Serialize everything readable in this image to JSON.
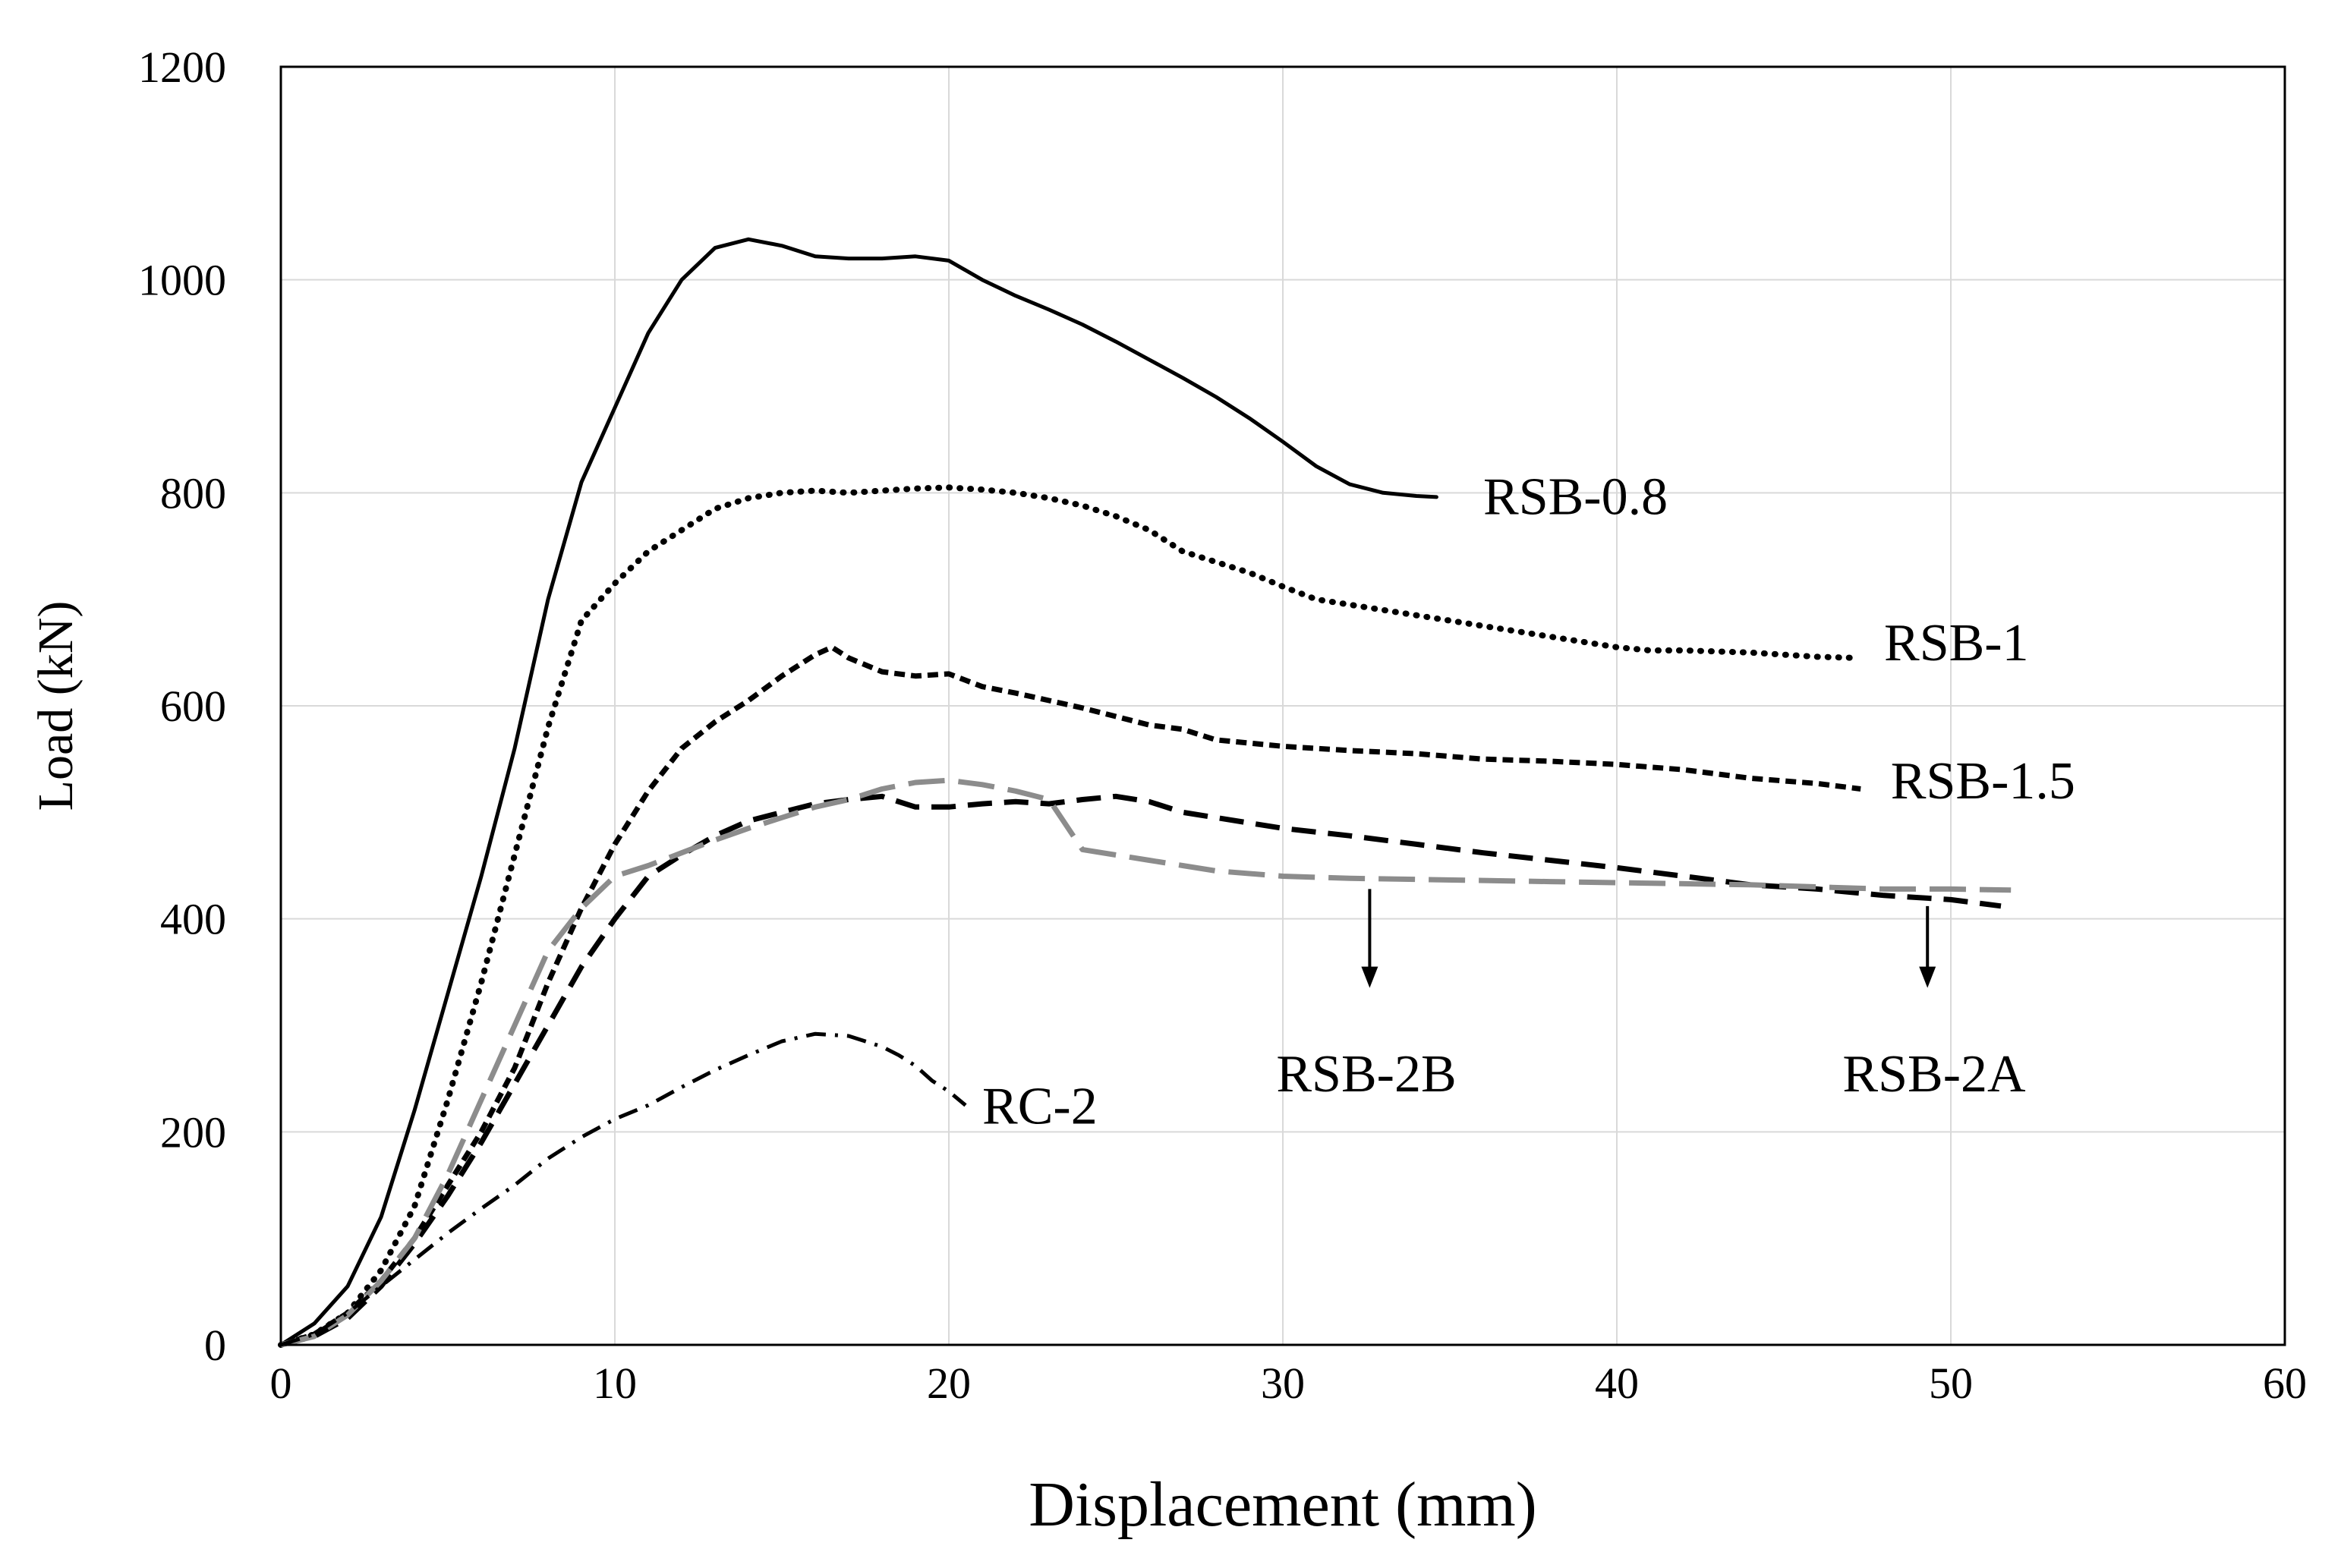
{
  "chart_data": {
    "type": "line",
    "title": "",
    "xlabel": "Displacement (mm)",
    "ylabel": "Load (kN)",
    "xlim": [
      0,
      60
    ],
    "ylim": [
      0,
      1200
    ],
    "xticks": [
      0,
      10,
      20,
      30,
      40,
      50,
      60
    ],
    "yticks": [
      0,
      200,
      400,
      600,
      800,
      1000,
      1200
    ],
    "grid": true,
    "series": [
      {
        "name": "RSB-0.8",
        "style": "solid",
        "color": "#000000",
        "points": [
          [
            0,
            0
          ],
          [
            1,
            20
          ],
          [
            2,
            55
          ],
          [
            3,
            120
          ],
          [
            4,
            220
          ],
          [
            5,
            330
          ],
          [
            6,
            440
          ],
          [
            7,
            560
          ],
          [
            8,
            700
          ],
          [
            9,
            810
          ],
          [
            10,
            880
          ],
          [
            11,
            950
          ],
          [
            12,
            1000
          ],
          [
            13,
            1030
          ],
          [
            14,
            1038
          ],
          [
            15,
            1032
          ],
          [
            16,
            1022
          ],
          [
            17,
            1020
          ],
          [
            18,
            1020
          ],
          [
            19,
            1022
          ],
          [
            20,
            1018
          ],
          [
            21,
            1000
          ],
          [
            22,
            985
          ],
          [
            23,
            972
          ],
          [
            24,
            958
          ],
          [
            25,
            942
          ],
          [
            26,
            925
          ],
          [
            27,
            908
          ],
          [
            28,
            890
          ],
          [
            29,
            870
          ],
          [
            30,
            848
          ],
          [
            31,
            825
          ],
          [
            32,
            808
          ],
          [
            33,
            800
          ],
          [
            34,
            797
          ],
          [
            34.6,
            796
          ]
        ]
      },
      {
        "name": "RSB-1",
        "style": "dotted",
        "color": "#000000",
        "points": [
          [
            0,
            0
          ],
          [
            1,
            10
          ],
          [
            2,
            30
          ],
          [
            3,
            70
          ],
          [
            4,
            130
          ],
          [
            5,
            230
          ],
          [
            6,
            340
          ],
          [
            7,
            460
          ],
          [
            8,
            580
          ],
          [
            9,
            680
          ],
          [
            10,
            715
          ],
          [
            11,
            745
          ],
          [
            12,
            765
          ],
          [
            13,
            785
          ],
          [
            14,
            795
          ],
          [
            15,
            800
          ],
          [
            16,
            802
          ],
          [
            17,
            800
          ],
          [
            18,
            802
          ],
          [
            19,
            804
          ],
          [
            20,
            805
          ],
          [
            21,
            803
          ],
          [
            22,
            800
          ],
          [
            23,
            795
          ],
          [
            24,
            788
          ],
          [
            25,
            778
          ],
          [
            26,
            765
          ],
          [
            27,
            745
          ],
          [
            28,
            735
          ],
          [
            29,
            725
          ],
          [
            30,
            712
          ],
          [
            31,
            700
          ],
          [
            32,
            695
          ],
          [
            33,
            690
          ],
          [
            34,
            685
          ],
          [
            35,
            680
          ],
          [
            36,
            675
          ],
          [
            37,
            670
          ],
          [
            38,
            665
          ],
          [
            39,
            660
          ],
          [
            40,
            655
          ],
          [
            41,
            652
          ],
          [
            42,
            652
          ],
          [
            43,
            651
          ],
          [
            44,
            650
          ],
          [
            45,
            648
          ],
          [
            46,
            646
          ],
          [
            47.2,
            645
          ]
        ]
      },
      {
        "name": "RSB-1.5",
        "style": "short-dash",
        "color": "#000000",
        "points": [
          [
            0,
            0
          ],
          [
            1,
            10
          ],
          [
            2,
            30
          ],
          [
            3,
            60
          ],
          [
            4,
            100
          ],
          [
            5,
            150
          ],
          [
            6,
            200
          ],
          [
            7,
            260
          ],
          [
            8,
            340
          ],
          [
            9,
            410
          ],
          [
            10,
            470
          ],
          [
            11,
            520
          ],
          [
            12,
            560
          ],
          [
            13,
            585
          ],
          [
            14,
            605
          ],
          [
            15,
            628
          ],
          [
            16,
            648
          ],
          [
            16.5,
            655
          ],
          [
            17,
            645
          ],
          [
            18,
            632
          ],
          [
            19,
            628
          ],
          [
            20,
            630
          ],
          [
            21,
            618
          ],
          [
            22,
            612
          ],
          [
            23,
            605
          ],
          [
            24,
            598
          ],
          [
            25,
            590
          ],
          [
            26,
            582
          ],
          [
            27,
            578
          ],
          [
            28,
            568
          ],
          [
            30,
            562
          ],
          [
            32,
            558
          ],
          [
            34,
            555
          ],
          [
            36,
            550
          ],
          [
            38,
            548
          ],
          [
            40,
            545
          ],
          [
            42,
            540
          ],
          [
            44,
            532
          ],
          [
            46,
            527
          ],
          [
            47.3,
            522
          ]
        ]
      },
      {
        "name": "RSB-2A",
        "style": "dash",
        "color": "#000000",
        "points": [
          [
            0,
            0
          ],
          [
            1,
            8
          ],
          [
            2,
            25
          ],
          [
            3,
            55
          ],
          [
            4,
            95
          ],
          [
            5,
            140
          ],
          [
            6,
            190
          ],
          [
            7,
            245
          ],
          [
            8,
            300
          ],
          [
            9,
            355
          ],
          [
            10,
            400
          ],
          [
            11,
            440
          ],
          [
            12,
            460
          ],
          [
            13,
            478
          ],
          [
            14,
            492
          ],
          [
            15,
            500
          ],
          [
            16,
            508
          ],
          [
            17,
            512
          ],
          [
            18,
            515
          ],
          [
            19,
            505
          ],
          [
            20,
            505
          ],
          [
            21,
            508
          ],
          [
            22,
            510
          ],
          [
            23,
            508
          ],
          [
            24,
            512
          ],
          [
            25,
            515
          ],
          [
            26,
            510
          ],
          [
            27,
            500
          ],
          [
            28,
            495
          ],
          [
            30,
            485
          ],
          [
            32,
            478
          ],
          [
            34,
            470
          ],
          [
            36,
            462
          ],
          [
            38,
            455
          ],
          [
            40,
            448
          ],
          [
            42,
            440
          ],
          [
            44,
            432
          ],
          [
            46,
            428
          ],
          [
            48,
            422
          ],
          [
            50,
            418
          ],
          [
            51.5,
            412
          ]
        ]
      },
      {
        "name": "RSB-2B",
        "style": "long-dash",
        "color": "#8c8c8c",
        "points": [
          [
            0,
            0
          ],
          [
            1,
            8
          ],
          [
            2,
            28
          ],
          [
            3,
            60
          ],
          [
            4,
            100
          ],
          [
            5,
            160
          ],
          [
            6,
            230
          ],
          [
            7,
            300
          ],
          [
            8,
            370
          ],
          [
            9,
            410
          ],
          [
            10,
            440
          ],
          [
            11,
            450
          ],
          [
            12,
            462
          ],
          [
            13,
            474
          ],
          [
            14,
            485
          ],
          [
            15,
            495
          ],
          [
            16,
            505
          ],
          [
            17,
            512
          ],
          [
            18,
            522
          ],
          [
            19,
            528
          ],
          [
            20,
            530
          ],
          [
            21,
            526
          ],
          [
            22,
            520
          ],
          [
            23,
            512
          ],
          [
            24,
            465
          ],
          [
            25,
            460
          ],
          [
            26,
            455
          ],
          [
            27,
            450
          ],
          [
            28,
            445
          ],
          [
            30,
            440
          ],
          [
            32,
            438
          ],
          [
            34,
            437
          ],
          [
            36,
            436
          ],
          [
            38,
            435
          ],
          [
            40,
            434
          ],
          [
            42,
            433
          ],
          [
            44,
            432
          ],
          [
            46,
            430
          ],
          [
            48,
            428
          ],
          [
            50,
            428
          ],
          [
            51.8,
            427
          ]
        ]
      },
      {
        "name": "RC-2",
        "style": "dash-dot",
        "color": "#000000",
        "points": [
          [
            0,
            0
          ],
          [
            1,
            10
          ],
          [
            2,
            30
          ],
          [
            3,
            55
          ],
          [
            4,
            80
          ],
          [
            5,
            105
          ],
          [
            6,
            128
          ],
          [
            7,
            150
          ],
          [
            8,
            175
          ],
          [
            9,
            195
          ],
          [
            10,
            212
          ],
          [
            11,
            225
          ],
          [
            12,
            242
          ],
          [
            13,
            258
          ],
          [
            14,
            272
          ],
          [
            15,
            285
          ],
          [
            16,
            292
          ],
          [
            17,
            290
          ],
          [
            18,
            280
          ],
          [
            18.5,
            272
          ],
          [
            19,
            262
          ],
          [
            19.5,
            248
          ],
          [
            20,
            238
          ],
          [
            20.5,
            225
          ]
        ]
      }
    ],
    "annotations": [
      {
        "text": "RSB-0.8",
        "at": [
          36,
          797
        ],
        "anchor": "start",
        "series": "RSB-0.8"
      },
      {
        "text": "RSB-1",
        "at": [
          48,
          660
        ],
        "anchor": "start",
        "series": "RSB-1"
      },
      {
        "text": "RSB-1.5",
        "at": [
          48.2,
          530
        ],
        "anchor": "start",
        "series": "RSB-1.5"
      },
      {
        "text": "RSB-2B",
        "at": [
          32.5,
          255
        ],
        "anchor": "middle",
        "series": "RSB-2B",
        "arrow_from": [
          32.6,
          428
        ],
        "arrow_to": [
          32.6,
          338
        ]
      },
      {
        "text": "RSB-2A",
        "at": [
          49.5,
          255
        ],
        "anchor": "middle",
        "series": "RSB-2A",
        "arrow_from": [
          49.3,
          412
        ],
        "arrow_to": [
          49.3,
          338
        ]
      },
      {
        "text": "RC-2",
        "at": [
          21,
          225
        ],
        "anchor": "start",
        "series": "RC-2"
      }
    ]
  }
}
